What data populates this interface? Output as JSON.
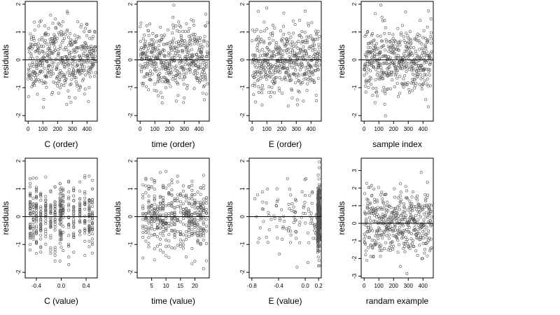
{
  "chart_data": [
    {
      "type": "scatter",
      "xlabel": "C (order)",
      "ylabel": "residuals",
      "xlim": [
        -20,
        470
      ],
      "ylim": [
        -2.2,
        2.1
      ],
      "xticks": [
        0,
        100,
        200,
        300,
        400
      ],
      "xtick_labels": [
        "0",
        "100",
        "200",
        "300",
        "400"
      ],
      "yticks": [
        -2,
        -1,
        0,
        1,
        2
      ],
      "ytick_labels": [
        "-2",
        "-1",
        "0",
        "1",
        "2"
      ],
      "reference_line": 0,
      "pattern": "order",
      "n": 460,
      "sd": 0.6,
      "seed": 11
    },
    {
      "type": "scatter",
      "xlabel": "time (order)",
      "ylabel": "residuals",
      "xlim": [
        -20,
        470
      ],
      "ylim": [
        -2.2,
        2.1
      ],
      "xticks": [
        0,
        100,
        200,
        300,
        400
      ],
      "xtick_labels": [
        "0",
        "100",
        "200",
        "300",
        "400"
      ],
      "yticks": [
        -2,
        -1,
        0,
        1,
        2
      ],
      "ytick_labels": [
        "-2",
        "-1",
        "0",
        "1",
        "2"
      ],
      "reference_line": 0,
      "pattern": "order",
      "n": 460,
      "sd": 0.6,
      "seed": 23
    },
    {
      "type": "scatter",
      "xlabel": "E (order)",
      "ylabel": "residuals",
      "xlim": [
        -20,
        470
      ],
      "ylim": [
        -2.2,
        2.1
      ],
      "xticks": [
        0,
        100,
        200,
        300,
        400
      ],
      "xtick_labels": [
        "0",
        "100",
        "200",
        "300",
        "400"
      ],
      "yticks": [
        -2,
        -1,
        0,
        1,
        2
      ],
      "ytick_labels": [
        "-2",
        "-1",
        "0",
        "1",
        "2"
      ],
      "reference_line": 0,
      "pattern": "order",
      "n": 460,
      "sd": 0.6,
      "seed": 37
    },
    {
      "type": "scatter",
      "xlabel": "sample index",
      "ylabel": "residuals",
      "xlim": [
        -20,
        470
      ],
      "ylim": [
        -2.2,
        2.1
      ],
      "xticks": [
        0,
        100,
        200,
        300,
        400
      ],
      "xtick_labels": [
        "0",
        "100",
        "200",
        "300",
        "400"
      ],
      "yticks": [
        -2,
        -1,
        0,
        1,
        2
      ],
      "ytick_labels": [
        "-2",
        "-1",
        "0",
        "1",
        "2"
      ],
      "reference_line": 0,
      "pattern": "order",
      "n": 460,
      "sd": 0.6,
      "seed": 41
    },
    {
      "type": "scatter",
      "xlabel": "C (value)",
      "ylabel": "residuals",
      "xlim": [
        -0.58,
        0.58
      ],
      "ylim": [
        -2.2,
        2.1
      ],
      "xticks": [
        -0.4,
        0,
        0.4
      ],
      "xtick_labels": [
        "-0.4",
        "0.0",
        "0.4"
      ],
      "yticks": [
        -2,
        -1,
        0,
        1,
        2
      ],
      "ytick_labels": [
        "-2",
        "-1",
        "0",
        "1",
        "2"
      ],
      "reference_line": 0,
      "pattern": "levels",
      "levels": [
        -0.5,
        -0.45,
        -0.4,
        -0.33,
        -0.25,
        -0.17,
        -0.1,
        -0.02,
        0,
        0.03,
        0.12,
        0.2,
        0.3,
        0.38,
        0.45,
        0.5
      ],
      "n": 460,
      "sd": 0.6,
      "seed": 53
    },
    {
      "type": "scatter",
      "xlabel": "time (value)",
      "ylabel": "residuals",
      "xlim": [
        0,
        25
      ],
      "ylim": [
        -2.2,
        2.1
      ],
      "xticks": [
        5,
        10,
        15,
        20
      ],
      "xtick_labels": [
        "5",
        "10",
        "15",
        "20"
      ],
      "yticks": [
        -2,
        -1,
        0,
        1,
        2
      ],
      "ytick_labels": [
        "-2",
        "-1",
        "0",
        "1",
        "2"
      ],
      "reference_line": 0,
      "pattern": "levels",
      "levels": [
        2,
        3,
        4,
        5,
        6,
        7,
        8,
        9,
        10,
        11,
        12,
        13,
        14,
        15,
        16,
        17,
        18,
        19,
        20,
        21,
        22,
        23,
        24
      ],
      "n": 460,
      "sd": 0.6,
      "seed": 61
    },
    {
      "type": "scatter",
      "xlabel": "E (value)",
      "ylabel": "residuals",
      "xlim": [
        -0.84,
        0.24
      ],
      "ylim": [
        -2.2,
        2.1
      ],
      "xticks": [
        -0.8,
        -0.4,
        0,
        0.2
      ],
      "xtick_labels": [
        "-0.8",
        "-0.4",
        "0.0",
        "0.2"
      ],
      "yticks": [
        -2,
        -1,
        0,
        1,
        2
      ],
      "ytick_labels": [
        "-2",
        "-1",
        "0",
        "1",
        "2"
      ],
      "reference_line": 0,
      "pattern": "skewed",
      "cluster_value": 0.2,
      "n": 460,
      "sd": 0.6,
      "seed": 71
    },
    {
      "type": "scatter",
      "xlabel": "randam example",
      "ylabel": "residuals",
      "xlim": [
        -20,
        470
      ],
      "ylim": [
        -3.1,
        3.7
      ],
      "xticks": [
        0,
        100,
        200,
        300,
        400
      ],
      "xtick_labels": [
        "0",
        "100",
        "200",
        "300",
        "400"
      ],
      "yticks": [
        -3,
        -2,
        -1,
        0,
        1,
        2,
        3
      ],
      "ytick_labels": [
        "-3",
        "-2",
        "-1",
        "0",
        "1",
        "2",
        "3"
      ],
      "reference_line": 0,
      "pattern": "order",
      "n": 460,
      "sd": 1.0,
      "seed": 83
    }
  ]
}
